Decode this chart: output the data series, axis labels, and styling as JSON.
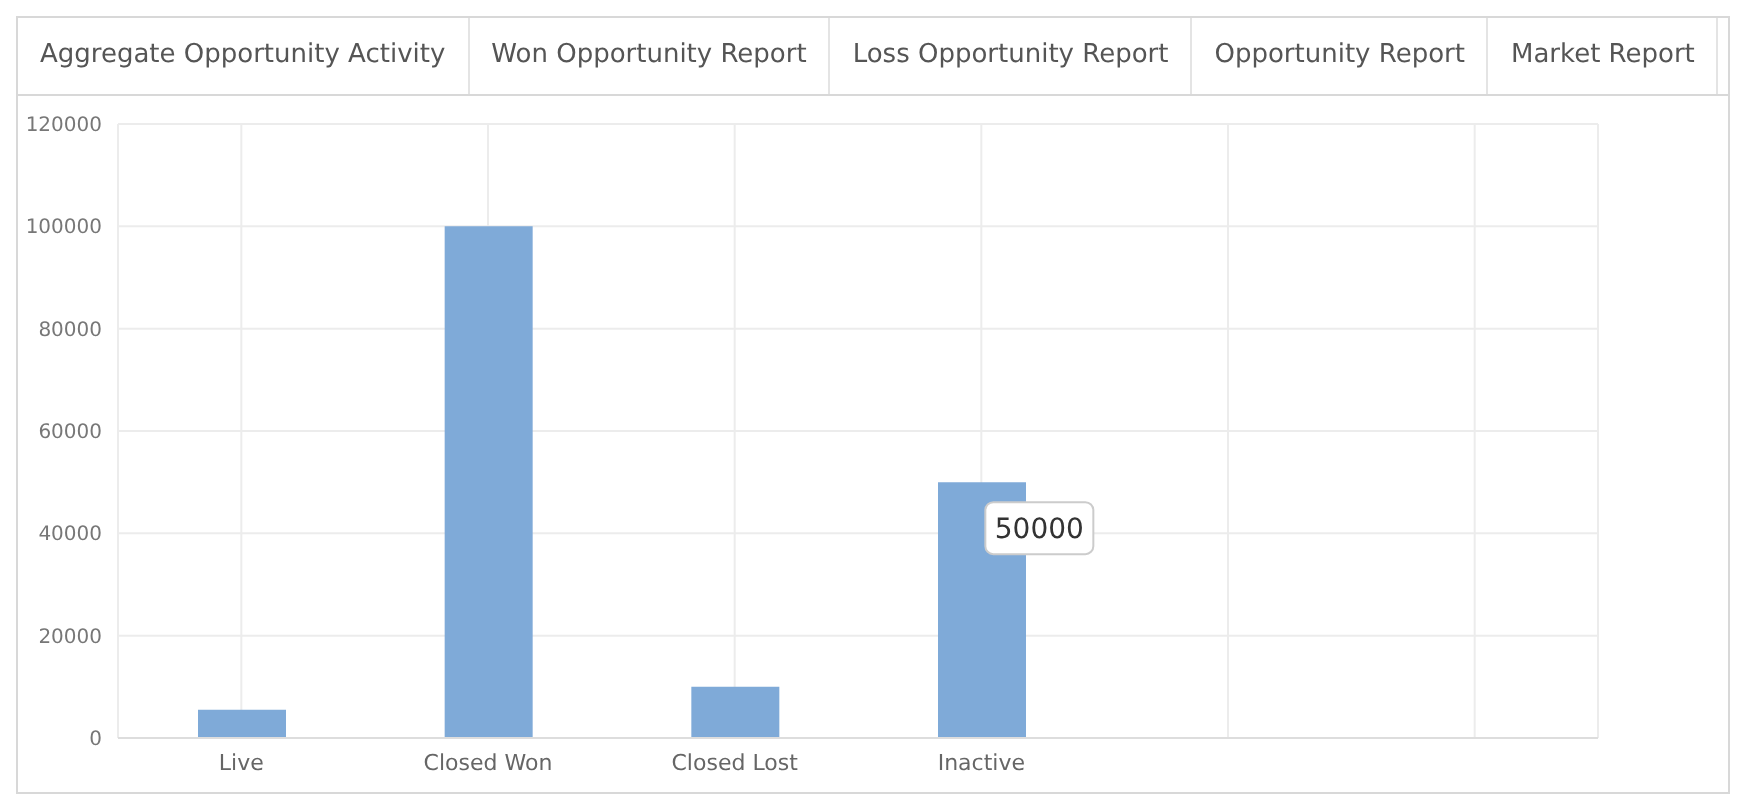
{
  "chart_data": {
    "type": "bar",
    "categories": [
      "Live",
      "Closed Won",
      "Closed Lost",
      "Inactive",
      null,
      null
    ],
    "values": [
      5500,
      100000,
      10000,
      50000,
      null,
      null
    ],
    "color": "#7faad8",
    "ylim": [
      0,
      120000
    ],
    "yticks": [
      0,
      20000,
      40000,
      60000,
      80000,
      100000,
      120000
    ],
    "grid": true,
    "annotations": [
      "Aggregate Opportunity Activity",
      "Won Opportunity Report",
      "Loss Opportunity Report",
      "Opportunity Report",
      "Market Report",
      {
        "text": "50000",
        "x": "Inactive",
        "y": 50000
      }
    ]
  }
}
